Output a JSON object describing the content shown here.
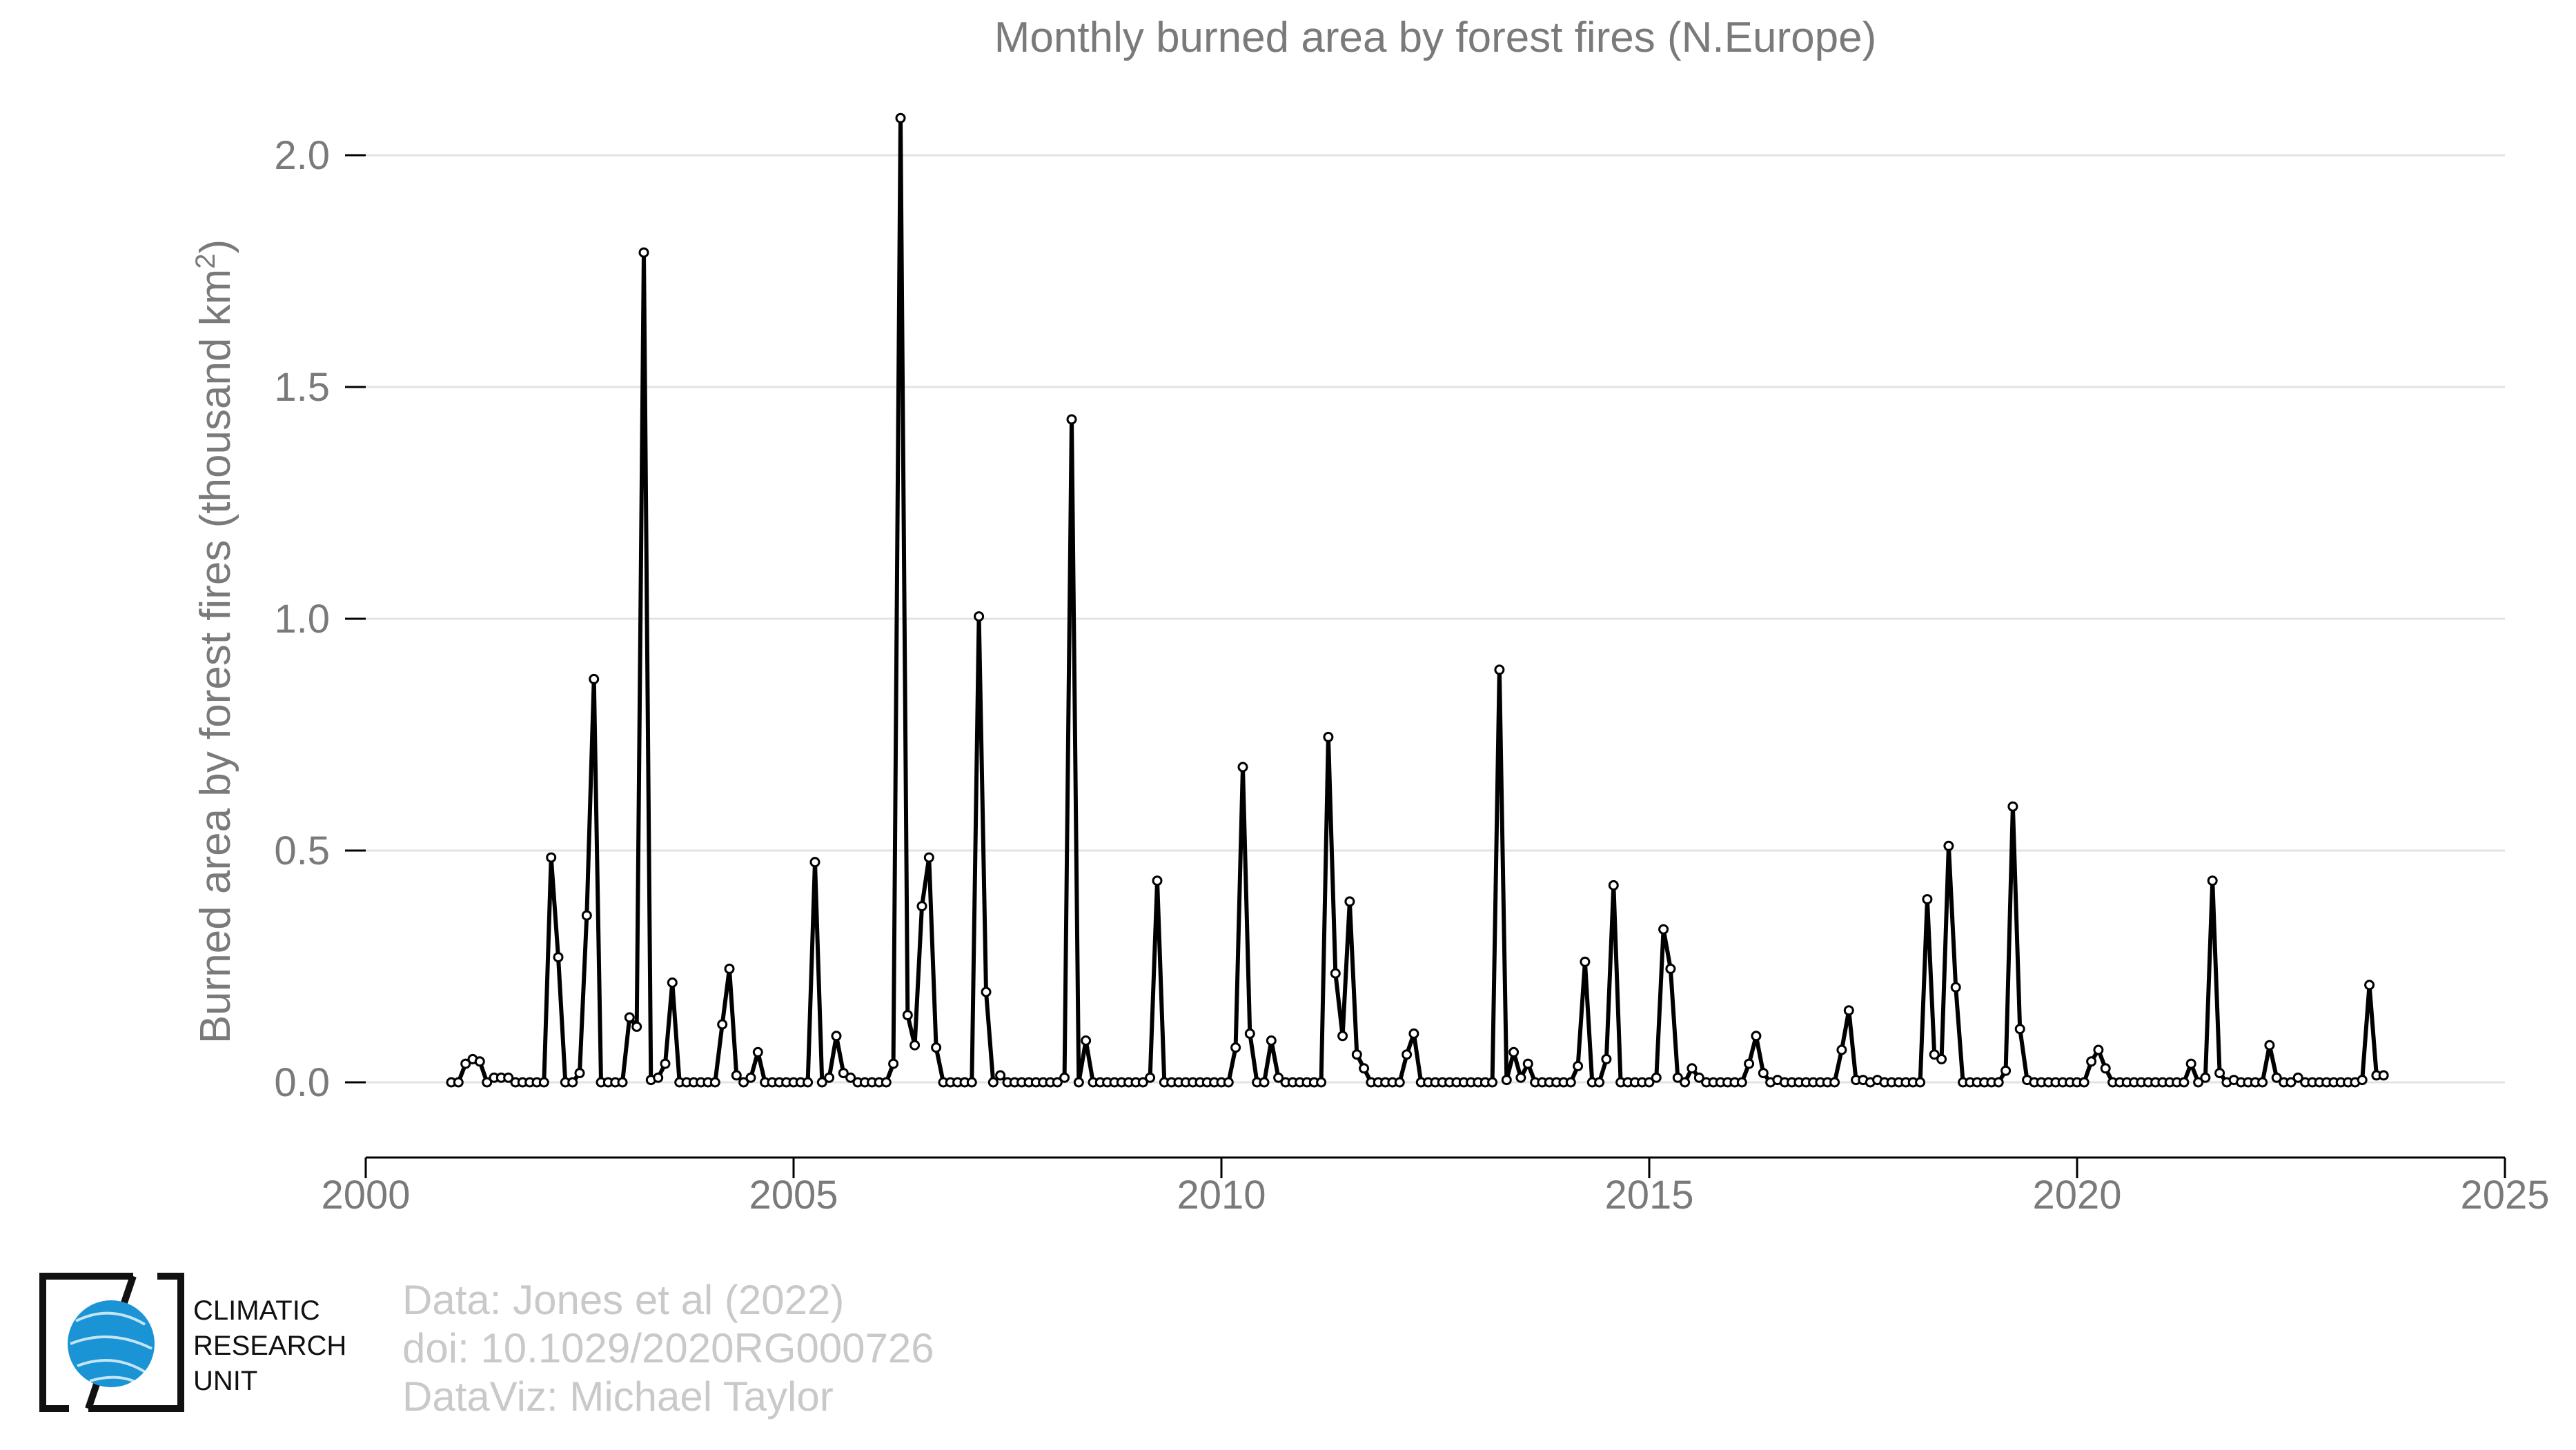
{
  "chart_data": {
    "type": "line",
    "title": "Monthly burned area by forest fires (N.Europe)",
    "ylabel": "Burned area by forest fires (thousand km",
    "ylabel_superscript": "2",
    "ylabel_suffix": ")",
    "xlim": [
      2000,
      2025
    ],
    "ylim": [
      -0.165,
      2.13
    ],
    "xticks": [
      2000,
      2005,
      2010,
      2015,
      2020,
      2025
    ],
    "xtick_labels": [
      "2000",
      "2005",
      "2010",
      "2015",
      "2020",
      "2025"
    ],
    "yticks": [
      0.0,
      0.5,
      1.0,
      1.5,
      2.0
    ],
    "ytick_labels": [
      "0.0",
      "0.5",
      "1.0",
      "1.5",
      "2.0"
    ],
    "grid": "horizontal",
    "series": [
      {
        "color": "#000000",
        "marker": "open-circle",
        "x_start": 2001.0,
        "x_step": 0.08333,
        "values": [
          0.0,
          0.0,
          0.04,
          0.05,
          0.045,
          0.0,
          0.01,
          0.01,
          0.01,
          0.0,
          0.0,
          0.0,
          0.0,
          0.0,
          0.485,
          0.27,
          0.0,
          0.0,
          0.02,
          0.36,
          0.87,
          0.0,
          0.0,
          0.0,
          0.0,
          0.14,
          0.12,
          1.79,
          0.005,
          0.01,
          0.04,
          0.215,
          0.0,
          0.0,
          0.0,
          0.0,
          0.0,
          0.0,
          0.125,
          0.245,
          0.015,
          0.0,
          0.01,
          0.065,
          0.0,
          0.0,
          0.0,
          0.0,
          0.0,
          0.0,
          0.0,
          0.475,
          0.0,
          0.01,
          0.1,
          0.02,
          0.01,
          0.0,
          0.0,
          0.0,
          0.0,
          0.0,
          0.04,
          2.08,
          0.145,
          0.08,
          0.38,
          0.485,
          0.075,
          0.0,
          0.0,
          0.0,
          0.0,
          0.0,
          1.005,
          0.195,
          0.0,
          0.015,
          0.0,
          0.0,
          0.0,
          0.0,
          0.0,
          0.0,
          0.0,
          0.0,
          0.01,
          1.43,
          0.0,
          0.09,
          0.0,
          0.0,
          0.0,
          0.0,
          0.0,
          0.0,
          0.0,
          0.0,
          0.01,
          0.435,
          0.0,
          0.0,
          0.0,
          0.0,
          0.0,
          0.0,
          0.0,
          0.0,
          0.0,
          0.0,
          0.075,
          0.68,
          0.105,
          0.0,
          0.0,
          0.09,
          0.01,
          0.0,
          0.0,
          0.0,
          0.0,
          0.0,
          0.0,
          0.745,
          0.235,
          0.1,
          0.39,
          0.06,
          0.03,
          0.0,
          0.0,
          0.0,
          0.0,
          0.0,
          0.06,
          0.105,
          0.0,
          0.0,
          0.0,
          0.0,
          0.0,
          0.0,
          0.0,
          0.0,
          0.0,
          0.0,
          0.0,
          0.89,
          0.005,
          0.065,
          0.01,
          0.04,
          0.0,
          0.0,
          0.0,
          0.0,
          0.0,
          0.0,
          0.035,
          0.26,
          0.0,
          0.0,
          0.05,
          0.425,
          0.0,
          0.0,
          0.0,
          0.0,
          0.0,
          0.01,
          0.33,
          0.245,
          0.01,
          0.0,
          0.03,
          0.01,
          0.0,
          0.0,
          0.0,
          0.0,
          0.0,
          0.0,
          0.04,
          0.1,
          0.02,
          0.0,
          0.005,
          0.0,
          0.0,
          0.0,
          0.0,
          0.0,
          0.0,
          0.0,
          0.0,
          0.07,
          0.155,
          0.005,
          0.005,
          0.0,
          0.005,
          0.0,
          0.0,
          0.0,
          0.0,
          0.0,
          0.0,
          0.395,
          0.06,
          0.05,
          0.51,
          0.205,
          0.0,
          0.0,
          0.0,
          0.0,
          0.0,
          0.0,
          0.025,
          0.595,
          0.115,
          0.005,
          0.0,
          0.0,
          0.0,
          0.0,
          0.0,
          0.0,
          0.0,
          0.0,
          0.045,
          0.07,
          0.03,
          0.0,
          0.0,
          0.0,
          0.0,
          0.0,
          0.0,
          0.0,
          0.0,
          0.0,
          0.0,
          0.0,
          0.04,
          0.0,
          0.01,
          0.435,
          0.02,
          0.0,
          0.005,
          0.0,
          0.0,
          0.0,
          0.0,
          0.08,
          0.01,
          0.0,
          0.0,
          0.01,
          0.0,
          0.0,
          0.0,
          0.0,
          0.0,
          0.0,
          0.0,
          0.0,
          0.005,
          0.21,
          0.015,
          0.015
        ]
      }
    ]
  },
  "credits": {
    "line1": "Data: Jones et al (2022)",
    "line2": "doi: 10.1029/2020RG000726",
    "line3": "DataViz: Michael Taylor"
  },
  "logo": {
    "line1": "CLIMATIC",
    "line2": "RESEARCH",
    "line3": "UNIT",
    "globe_color": "#1a94d4"
  }
}
